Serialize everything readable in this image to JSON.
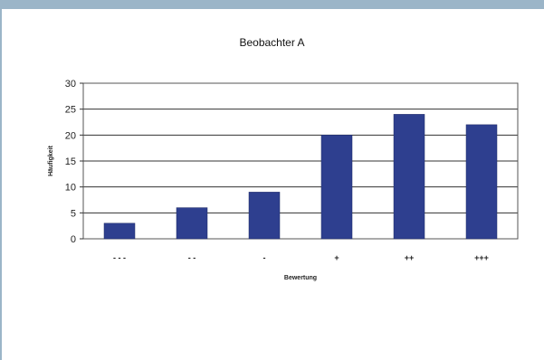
{
  "chart_data": {
    "type": "bar",
    "title": "Beobachter A",
    "xlabel": "Bewertung",
    "ylabel": "Häufigkeit",
    "categories": [
      "- - -",
      "- -",
      "-",
      "+",
      "++",
      "+++"
    ],
    "values": [
      3,
      6,
      9,
      20,
      24,
      22
    ],
    "ylim": [
      0,
      30
    ],
    "yticks": [
      "0",
      "5",
      "10",
      "15",
      "20",
      "25",
      "30"
    ],
    "grid": true,
    "colors": {
      "bar": "#2e3f8f",
      "frame": "#9bb5c8"
    }
  }
}
